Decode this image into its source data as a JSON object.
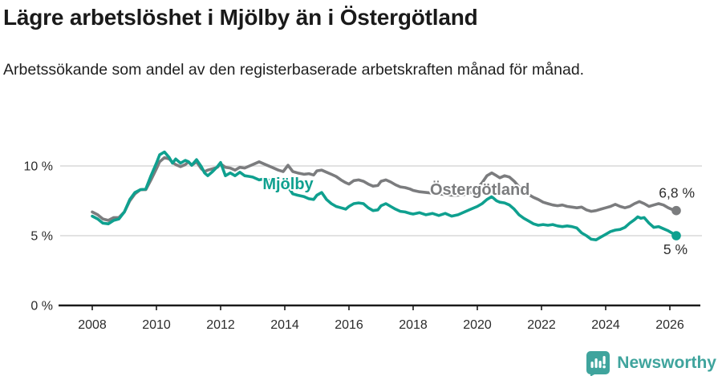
{
  "header": {
    "title": "Lägre arbetslöshet i Mjölby än i Östergötland",
    "subtitle": "Arbetssökande som andel av den registerbaserade arbetskraften månad för månad."
  },
  "colors": {
    "mjolby": "#0fa08f",
    "ostergotland": "#7b7c7e",
    "grid": "#d9d9d9",
    "axis": "#1a1a1a",
    "tick_text": "#2b2b2b",
    "brand": "#3fa49d"
  },
  "chart_data": {
    "type": "line",
    "x_axis": {
      "ticks": [
        2008,
        2010,
        2012,
        2014,
        2016,
        2018,
        2020,
        2022,
        2024,
        2026
      ],
      "range": [
        2007.5,
        2027
      ]
    },
    "y_axis": {
      "ticks": [
        {
          "value": 0,
          "label": "0 %"
        },
        {
          "value": 5,
          "label": "5 %"
        },
        {
          "value": 10,
          "label": "10 %"
        }
      ],
      "range": [
        0,
        11.5
      ]
    },
    "series": [
      {
        "name": "Östergötland",
        "color": "#7b7c7e",
        "end_label": "6,8 %",
        "end_label_offset": [
          23,
          -16
        ],
        "label_pos": {
          "x": 2020.08,
          "y": 7.93
        },
        "points": [
          [
            2008.0,
            6.7
          ],
          [
            2008.17,
            6.5
          ],
          [
            2008.33,
            6.2
          ],
          [
            2008.5,
            6.1
          ],
          [
            2008.67,
            6.3
          ],
          [
            2008.83,
            6.3
          ],
          [
            2009.0,
            6.7
          ],
          [
            2009.17,
            7.5
          ],
          [
            2009.33,
            8.0
          ],
          [
            2009.5,
            8.3
          ],
          [
            2009.67,
            8.3
          ],
          [
            2009.83,
            9.0
          ],
          [
            2010.0,
            9.8
          ],
          [
            2010.1,
            10.3
          ],
          [
            2010.25,
            10.6
          ],
          [
            2010.4,
            10.5
          ],
          [
            2010.5,
            10.25
          ],
          [
            2010.6,
            10.1
          ],
          [
            2010.75,
            9.95
          ],
          [
            2010.9,
            10.1
          ],
          [
            2011.0,
            10.3
          ],
          [
            2011.1,
            10.05
          ],
          [
            2011.25,
            10.3
          ],
          [
            2011.4,
            9.8
          ],
          [
            2011.5,
            9.6
          ],
          [
            2011.6,
            9.7
          ],
          [
            2011.75,
            9.8
          ],
          [
            2011.9,
            9.9
          ],
          [
            2012.0,
            10.15
          ],
          [
            2012.15,
            9.9
          ],
          [
            2012.3,
            9.85
          ],
          [
            2012.45,
            9.7
          ],
          [
            2012.6,
            9.9
          ],
          [
            2012.75,
            9.85
          ],
          [
            2012.9,
            10.0
          ],
          [
            2013.0,
            10.1
          ],
          [
            2013.2,
            10.3
          ],
          [
            2013.4,
            10.1
          ],
          [
            2013.6,
            9.9
          ],
          [
            2013.8,
            9.7
          ],
          [
            2013.95,
            9.6
          ],
          [
            2014.1,
            10.05
          ],
          [
            2014.25,
            9.6
          ],
          [
            2014.4,
            9.5
          ],
          [
            2014.6,
            9.4
          ],
          [
            2014.75,
            9.45
          ],
          [
            2014.9,
            9.35
          ],
          [
            2015.0,
            9.65
          ],
          [
            2015.15,
            9.7
          ],
          [
            2015.3,
            9.55
          ],
          [
            2015.45,
            9.4
          ],
          [
            2015.6,
            9.25
          ],
          [
            2015.75,
            9.0
          ],
          [
            2015.9,
            8.8
          ],
          [
            2016.0,
            8.7
          ],
          [
            2016.15,
            8.95
          ],
          [
            2016.3,
            9.0
          ],
          [
            2016.45,
            8.9
          ],
          [
            2016.6,
            8.7
          ],
          [
            2016.75,
            8.55
          ],
          [
            2016.9,
            8.6
          ],
          [
            2017.0,
            8.9
          ],
          [
            2017.15,
            9.0
          ],
          [
            2017.3,
            8.85
          ],
          [
            2017.45,
            8.65
          ],
          [
            2017.6,
            8.5
          ],
          [
            2017.75,
            8.45
          ],
          [
            2017.9,
            8.35
          ],
          [
            2018.0,
            8.25
          ],
          [
            2018.2,
            8.15
          ],
          [
            2018.4,
            8.1
          ],
          [
            2018.6,
            8.05
          ],
          [
            2018.8,
            8.0
          ],
          [
            2019.0,
            7.95
          ],
          [
            2019.2,
            7.9
          ],
          [
            2019.4,
            7.9
          ],
          [
            2019.6,
            7.95
          ],
          [
            2019.8,
            8.1
          ],
          [
            2020.0,
            8.4
          ],
          [
            2020.15,
            8.8
          ],
          [
            2020.3,
            9.3
          ],
          [
            2020.45,
            9.5
          ],
          [
            2020.6,
            9.3
          ],
          [
            2020.7,
            9.15
          ],
          [
            2020.85,
            9.3
          ],
          [
            2021.0,
            9.2
          ],
          [
            2021.15,
            8.9
          ],
          [
            2021.3,
            8.5
          ],
          [
            2021.45,
            8.2
          ],
          [
            2021.6,
            7.95
          ],
          [
            2021.75,
            7.75
          ],
          [
            2021.9,
            7.6
          ],
          [
            2022.05,
            7.4
          ],
          [
            2022.2,
            7.3
          ],
          [
            2022.35,
            7.2
          ],
          [
            2022.5,
            7.15
          ],
          [
            2022.65,
            7.2
          ],
          [
            2022.8,
            7.1
          ],
          [
            2022.95,
            7.05
          ],
          [
            2023.1,
            7.0
          ],
          [
            2023.25,
            7.05
          ],
          [
            2023.4,
            6.85
          ],
          [
            2023.55,
            6.75
          ],
          [
            2023.7,
            6.8
          ],
          [
            2023.85,
            6.9
          ],
          [
            2024.0,
            7.0
          ],
          [
            2024.15,
            7.1
          ],
          [
            2024.3,
            7.25
          ],
          [
            2024.45,
            7.1
          ],
          [
            2024.6,
            7.0
          ],
          [
            2024.75,
            7.1
          ],
          [
            2024.9,
            7.3
          ],
          [
            2025.05,
            7.45
          ],
          [
            2025.2,
            7.3
          ],
          [
            2025.35,
            7.1
          ],
          [
            2025.5,
            7.2
          ],
          [
            2025.65,
            7.3
          ],
          [
            2025.8,
            7.2
          ],
          [
            2025.95,
            7.0
          ],
          [
            2026.1,
            6.85
          ],
          [
            2026.2,
            6.8
          ]
        ]
      },
      {
        "name": "Mjölby",
        "color": "#0fa08f",
        "end_label": "5 %",
        "end_label_offset": [
          14,
          23
        ],
        "label_pos": {
          "x": 2014.1,
          "y": 8.33
        },
        "points": [
          [
            2008.0,
            6.4
          ],
          [
            2008.17,
            6.2
          ],
          [
            2008.33,
            5.9
          ],
          [
            2008.5,
            5.85
          ],
          [
            2008.67,
            6.1
          ],
          [
            2008.83,
            6.2
          ],
          [
            2009.0,
            6.7
          ],
          [
            2009.17,
            7.6
          ],
          [
            2009.33,
            8.1
          ],
          [
            2009.5,
            8.3
          ],
          [
            2009.67,
            8.35
          ],
          [
            2009.83,
            9.3
          ],
          [
            2010.0,
            10.2
          ],
          [
            2010.1,
            10.8
          ],
          [
            2010.25,
            11.0
          ],
          [
            2010.4,
            10.6
          ],
          [
            2010.5,
            10.2
          ],
          [
            2010.6,
            10.5
          ],
          [
            2010.75,
            10.2
          ],
          [
            2010.9,
            10.4
          ],
          [
            2011.0,
            10.3
          ],
          [
            2011.1,
            10.05
          ],
          [
            2011.25,
            10.45
          ],
          [
            2011.4,
            9.95
          ],
          [
            2011.5,
            9.5
          ],
          [
            2011.6,
            9.3
          ],
          [
            2011.75,
            9.6
          ],
          [
            2011.9,
            9.95
          ],
          [
            2012.0,
            10.25
          ],
          [
            2012.15,
            9.3
          ],
          [
            2012.3,
            9.5
          ],
          [
            2012.45,
            9.3
          ],
          [
            2012.6,
            9.55
          ],
          [
            2012.75,
            9.3
          ],
          [
            2012.9,
            9.25
          ],
          [
            2013.0,
            9.2
          ],
          [
            2013.2,
            9.0
          ],
          [
            2013.4,
            9.1
          ],
          [
            2013.6,
            8.85
          ],
          [
            2013.8,
            8.7
          ],
          [
            2013.95,
            8.6
          ],
          [
            2014.1,
            8.5
          ],
          [
            2014.25,
            8.0
          ],
          [
            2014.4,
            7.9
          ],
          [
            2014.6,
            7.8
          ],
          [
            2014.75,
            7.65
          ],
          [
            2014.9,
            7.6
          ],
          [
            2015.0,
            7.9
          ],
          [
            2015.15,
            8.1
          ],
          [
            2015.3,
            7.6
          ],
          [
            2015.45,
            7.3
          ],
          [
            2015.6,
            7.1
          ],
          [
            2015.75,
            7.0
          ],
          [
            2015.9,
            6.9
          ],
          [
            2016.0,
            7.1
          ],
          [
            2016.15,
            7.3
          ],
          [
            2016.3,
            7.35
          ],
          [
            2016.45,
            7.3
          ],
          [
            2016.6,
            7.0
          ],
          [
            2016.75,
            6.8
          ],
          [
            2016.9,
            6.85
          ],
          [
            2017.0,
            7.15
          ],
          [
            2017.15,
            7.3
          ],
          [
            2017.3,
            7.1
          ],
          [
            2017.45,
            6.9
          ],
          [
            2017.6,
            6.75
          ],
          [
            2017.75,
            6.7
          ],
          [
            2017.9,
            6.6
          ],
          [
            2018.0,
            6.55
          ],
          [
            2018.2,
            6.65
          ],
          [
            2018.4,
            6.5
          ],
          [
            2018.6,
            6.6
          ],
          [
            2018.8,
            6.45
          ],
          [
            2019.0,
            6.6
          ],
          [
            2019.2,
            6.4
          ],
          [
            2019.4,
            6.5
          ],
          [
            2019.6,
            6.7
          ],
          [
            2019.8,
            6.9
          ],
          [
            2020.0,
            7.1
          ],
          [
            2020.15,
            7.3
          ],
          [
            2020.3,
            7.6
          ],
          [
            2020.45,
            7.8
          ],
          [
            2020.6,
            7.5
          ],
          [
            2020.7,
            7.4
          ],
          [
            2020.85,
            7.35
          ],
          [
            2021.0,
            7.2
          ],
          [
            2021.15,
            6.9
          ],
          [
            2021.3,
            6.5
          ],
          [
            2021.45,
            6.25
          ],
          [
            2021.6,
            6.05
          ],
          [
            2021.75,
            5.85
          ],
          [
            2021.9,
            5.75
          ],
          [
            2022.05,
            5.8
          ],
          [
            2022.2,
            5.75
          ],
          [
            2022.35,
            5.8
          ],
          [
            2022.5,
            5.7
          ],
          [
            2022.65,
            5.65
          ],
          [
            2022.8,
            5.7
          ],
          [
            2022.95,
            5.65
          ],
          [
            2023.1,
            5.55
          ],
          [
            2023.25,
            5.2
          ],
          [
            2023.4,
            5.0
          ],
          [
            2023.55,
            4.75
          ],
          [
            2023.7,
            4.7
          ],
          [
            2023.85,
            4.9
          ],
          [
            2024.0,
            5.1
          ],
          [
            2024.15,
            5.3
          ],
          [
            2024.3,
            5.4
          ],
          [
            2024.45,
            5.45
          ],
          [
            2024.6,
            5.6
          ],
          [
            2024.75,
            5.9
          ],
          [
            2024.9,
            6.15
          ],
          [
            2025.0,
            6.35
          ],
          [
            2025.1,
            6.25
          ],
          [
            2025.2,
            6.3
          ],
          [
            2025.35,
            5.9
          ],
          [
            2025.5,
            5.6
          ],
          [
            2025.65,
            5.65
          ],
          [
            2025.8,
            5.5
          ],
          [
            2025.95,
            5.35
          ],
          [
            2026.1,
            5.15
          ],
          [
            2026.2,
            5.0
          ]
        ]
      }
    ]
  },
  "footer": {
    "brand": "Newsworthy"
  }
}
